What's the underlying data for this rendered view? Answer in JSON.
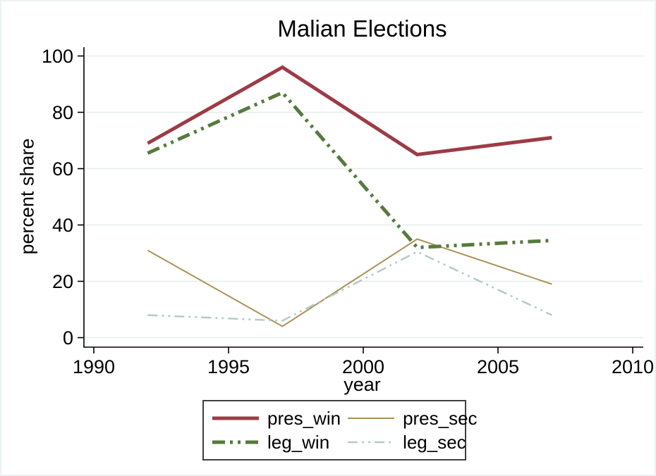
{
  "chart_data": {
    "type": "line",
    "title": "Malian Elections",
    "xlabel": "year",
    "ylabel": "percent share",
    "x": [
      1992,
      1997,
      2002,
      2007
    ],
    "xlim": [
      1990,
      2010
    ],
    "ylim": [
      0,
      100
    ],
    "xticks": [
      1990,
      1995,
      2000,
      2005,
      2010
    ],
    "yticks": [
      0,
      20,
      40,
      60,
      80,
      100
    ],
    "grid": "horizontal",
    "grid_color": "#e5edee",
    "axis_color": "#000000",
    "legend_position": "bottom",
    "series": [
      {
        "name": "pres_win",
        "color": "#9d3b45",
        "width": 5,
        "dasharray": "",
        "values": [
          69,
          96,
          65,
          71
        ]
      },
      {
        "name": "leg_win",
        "color": "#567a3d",
        "width": 5,
        "dasharray": "18 7 4 7 4 7",
        "values": [
          65.5,
          87,
          32,
          34.5
        ]
      },
      {
        "name": "pres_sec",
        "color": "#ab9257",
        "width": 2,
        "dasharray": "",
        "values": [
          31,
          4,
          35,
          19
        ]
      },
      {
        "name": "leg_sec",
        "color": "#b4cbc8",
        "width": 2.5,
        "dasharray": "14 6 3 6 3 6",
        "values": [
          8,
          6,
          30.5,
          8
        ]
      }
    ]
  }
}
